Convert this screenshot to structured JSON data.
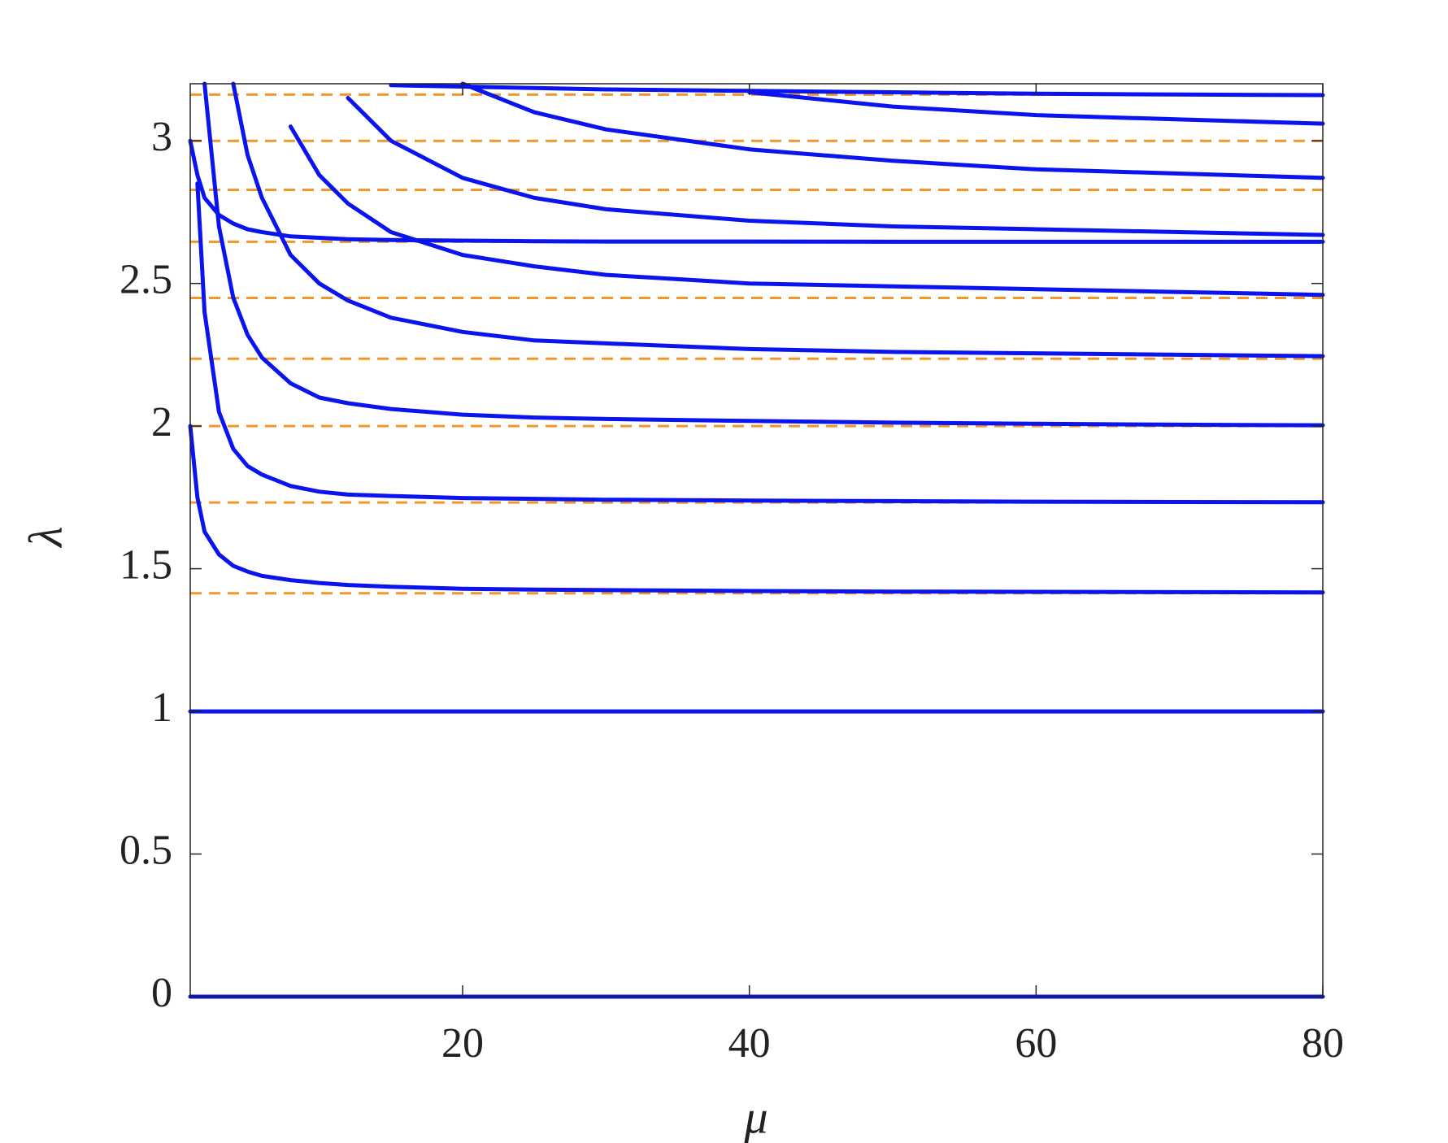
{
  "chart_data": {
    "type": "line",
    "x_label": "μ",
    "y_label": "λ",
    "x": [
      1,
      1.5,
      2,
      3,
      4,
      5,
      6,
      8,
      10,
      12,
      15,
      20,
      25,
      30,
      40,
      50,
      60,
      70,
      80
    ],
    "xlim": [
      1,
      80
    ],
    "xticks": [
      20,
      40,
      60,
      80
    ],
    "ylim": [
      0,
      3.2
    ],
    "yticks": [
      0,
      0.5,
      1,
      1.5,
      2,
      2.5,
      3
    ],
    "color": "#0a14ef",
    "reference_color": "#f0962a",
    "reference_lines": [
      0,
      1,
      1.414,
      1.732,
      2,
      2.236,
      2.449,
      2.646,
      2.828,
      3,
      3.162
    ],
    "series": [
      {
        "values": [
          0,
          0,
          0,
          0,
          0,
          0,
          0,
          0,
          0,
          0,
          0,
          0,
          0,
          0,
          0,
          0,
          0,
          0,
          0
        ]
      },
      {
        "values": [
          1,
          1,
          1,
          1,
          1,
          1,
          1,
          1,
          1,
          1,
          1,
          1,
          1,
          1,
          1,
          1,
          1,
          1,
          1
        ]
      },
      {
        "values": [
          2.0,
          1.75,
          1.63,
          1.55,
          1.51,
          1.49,
          1.475,
          1.46,
          1.45,
          1.443,
          1.437,
          1.43,
          1.427,
          1.425,
          1.422,
          1.42,
          1.419,
          1.418,
          1.417
        ]
      },
      {
        "values": [
          null,
          2.85,
          2.4,
          2.05,
          1.92,
          1.86,
          1.83,
          1.79,
          1.77,
          1.76,
          1.755,
          1.748,
          1.745,
          1.742,
          1.739,
          1.737,
          1.735,
          1.734,
          1.733
        ]
      },
      {
        "values": [
          null,
          null,
          3.2,
          2.7,
          2.45,
          2.32,
          2.24,
          2.15,
          2.1,
          2.08,
          2.06,
          2.04,
          2.03,
          2.025,
          2.018,
          2.012,
          2.008,
          2.005,
          2.003
        ]
      },
      {
        "values": [
          null,
          null,
          null,
          null,
          3.2,
          2.95,
          2.8,
          2.6,
          2.5,
          2.44,
          2.38,
          2.33,
          2.3,
          2.29,
          2.27,
          2.26,
          2.255,
          2.25,
          2.245
        ]
      },
      {
        "values": [
          null,
          null,
          null,
          null,
          null,
          null,
          null,
          3.05,
          2.88,
          2.78,
          2.68,
          2.6,
          2.56,
          2.53,
          2.5,
          2.49,
          2.48,
          2.47,
          2.46
        ]
      },
      {
        "values": [
          3.0,
          2.88,
          2.8,
          2.74,
          2.71,
          2.69,
          2.68,
          2.665,
          2.66,
          2.655,
          2.652,
          2.65,
          2.648,
          2.647,
          2.647,
          2.646,
          2.646,
          2.646,
          2.646
        ]
      },
      {
        "values": [
          null,
          null,
          null,
          null,
          null,
          null,
          null,
          null,
          null,
          3.15,
          3.0,
          2.87,
          2.8,
          2.76,
          2.72,
          2.7,
          2.69,
          2.68,
          2.67
        ]
      },
      {
        "values": [
          null,
          null,
          null,
          null,
          null,
          null,
          null,
          null,
          null,
          null,
          null,
          3.2,
          3.1,
          3.04,
          2.97,
          2.93,
          2.9,
          2.885,
          2.87
        ]
      },
      {
        "values": [
          null,
          null,
          null,
          null,
          null,
          null,
          null,
          null,
          null,
          null,
          null,
          null,
          null,
          null,
          3.17,
          3.12,
          3.09,
          3.075,
          3.06
        ]
      },
      {
        "values": [
          null,
          null,
          null,
          null,
          null,
          null,
          null,
          null,
          null,
          null,
          3.195,
          3.19,
          3.185,
          3.18,
          3.175,
          3.17,
          3.165,
          3.162,
          3.16
        ]
      }
    ]
  }
}
